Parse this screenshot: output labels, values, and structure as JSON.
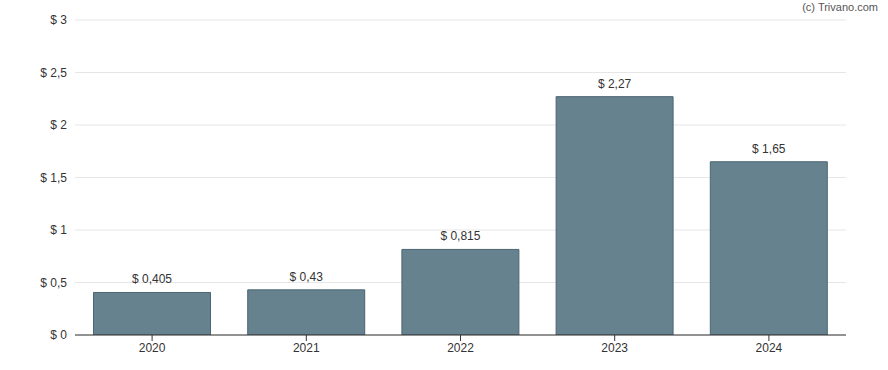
{
  "chart_data": {
    "type": "bar",
    "annotations": [
      "(c) Trivano.com"
    ],
    "categories": [
      "2020",
      "2021",
      "2022",
      "2023",
      "2024"
    ],
    "values": [
      0.405,
      0.43,
      0.815,
      2.27,
      1.65
    ],
    "value_labels": [
      "$ 0,405",
      "$ 0,43",
      "$ 0,815",
      "$ 2,27",
      "$ 1,65"
    ],
    "data_labels": true,
    "color": "#66828f",
    "ylim": [
      0,
      3
    ],
    "yticks": [
      {
        "value": 0,
        "label": "$ 0"
      },
      {
        "value": 0.5,
        "label": "$ 0,5"
      },
      {
        "value": 1,
        "label": "$ 1"
      },
      {
        "value": 1.5,
        "label": "$ 1,5"
      },
      {
        "value": 2,
        "label": "$ 2"
      },
      {
        "value": 2.5,
        "label": "$ 2,5"
      },
      {
        "value": 3,
        "label": "$ 3"
      }
    ],
    "grid": true
  }
}
